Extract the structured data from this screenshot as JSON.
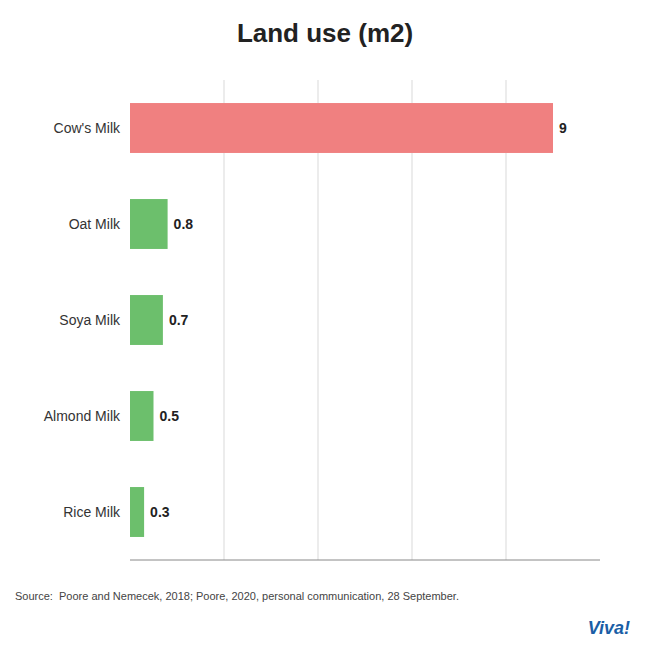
{
  "chart_data": {
    "type": "bar",
    "orientation": "horizontal",
    "title": "Land use (m2)",
    "categories": [
      "Cow's Milk",
      "Oat Milk",
      "Soya Milk",
      "Almond Milk",
      "Rice Milk"
    ],
    "values": [
      9,
      0.8,
      0.7,
      0.5,
      0.3
    ],
    "colors": [
      "#F08080",
      "#6CBF6C",
      "#6CBF6C",
      "#6CBF6C",
      "#6CBF6C"
    ],
    "xlim": [
      0,
      10
    ],
    "xticks": [
      2,
      4,
      6,
      8
    ],
    "grid": true,
    "tick_labels": false,
    "data_labels": true,
    "annotations": [
      "Source:  Poore and Nemecek, 2018; Poore, 2020, personal communication, 28 September.",
      "Viva!"
    ]
  }
}
